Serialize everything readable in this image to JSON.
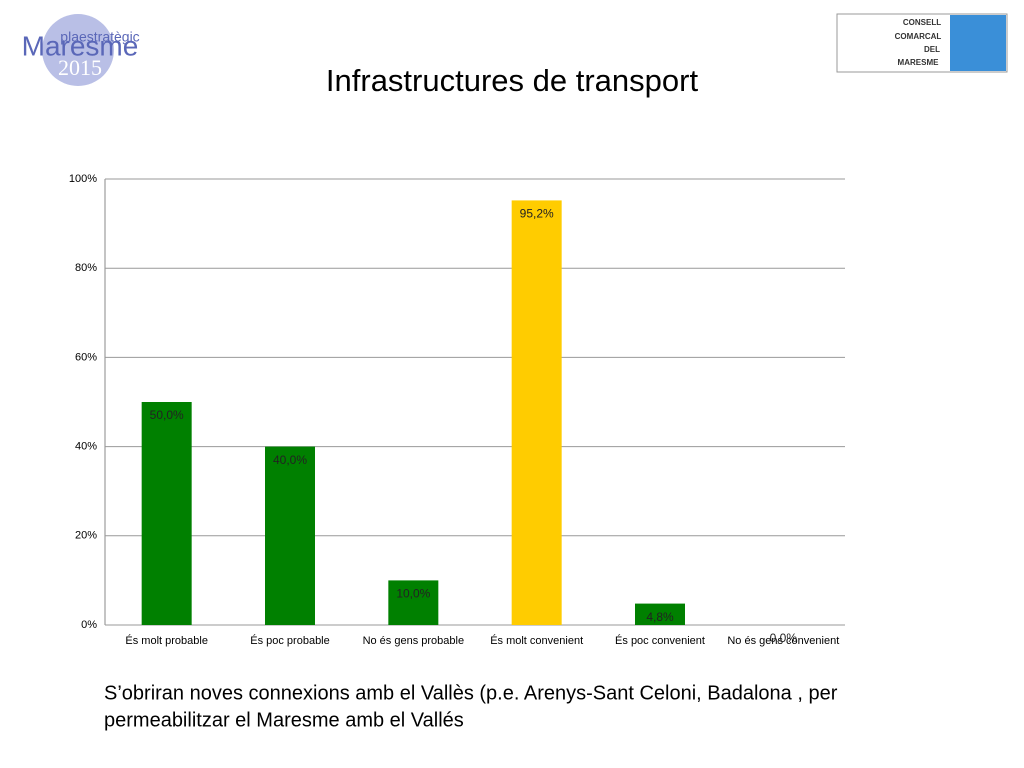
{
  "chart_data": {
    "type": "bar",
    "title": "Infrastructures de transport",
    "categories": [
      "És molt probable",
      "És poc probable",
      "No és gens probable",
      "És molt convenient",
      "És poc convenient",
      "No és gens convenient"
    ],
    "values": [
      50.0,
      40.0,
      10.0,
      95.2,
      4.8,
      0.0
    ],
    "value_labels": [
      "50,0%",
      "40,0%",
      "10,0%",
      "95,2%",
      "4,8%",
      "0,0%"
    ],
    "colors": [
      "#008000",
      "#008000",
      "#008000",
      "#ffcc00",
      "#008000",
      "#008000"
    ],
    "ylim": [
      0,
      100
    ],
    "yticks": [
      {
        "value": 0,
        "label": "0%"
      },
      {
        "value": 20,
        "label": "20%"
      },
      {
        "value": 40,
        "label": "40%"
      },
      {
        "value": 60,
        "label": "60%"
      },
      {
        "value": 80,
        "label": "80%"
      },
      {
        "value": 100,
        "label": "100%"
      }
    ],
    "grid": true
  },
  "slide": {
    "logo_left": [
      "plaestratègic",
      "Maresme",
      "2015"
    ],
    "logo_right": [
      "CONSELL",
      "COMARCAL",
      "DEL",
      "MARESME"
    ],
    "caption": [
      "S’obriran noves connexions amb el Vallès (p.e. Arenys-Sant Celoni, Badalona , per",
      "permeabilitzar el Maresme amb el Vallés"
    ]
  }
}
